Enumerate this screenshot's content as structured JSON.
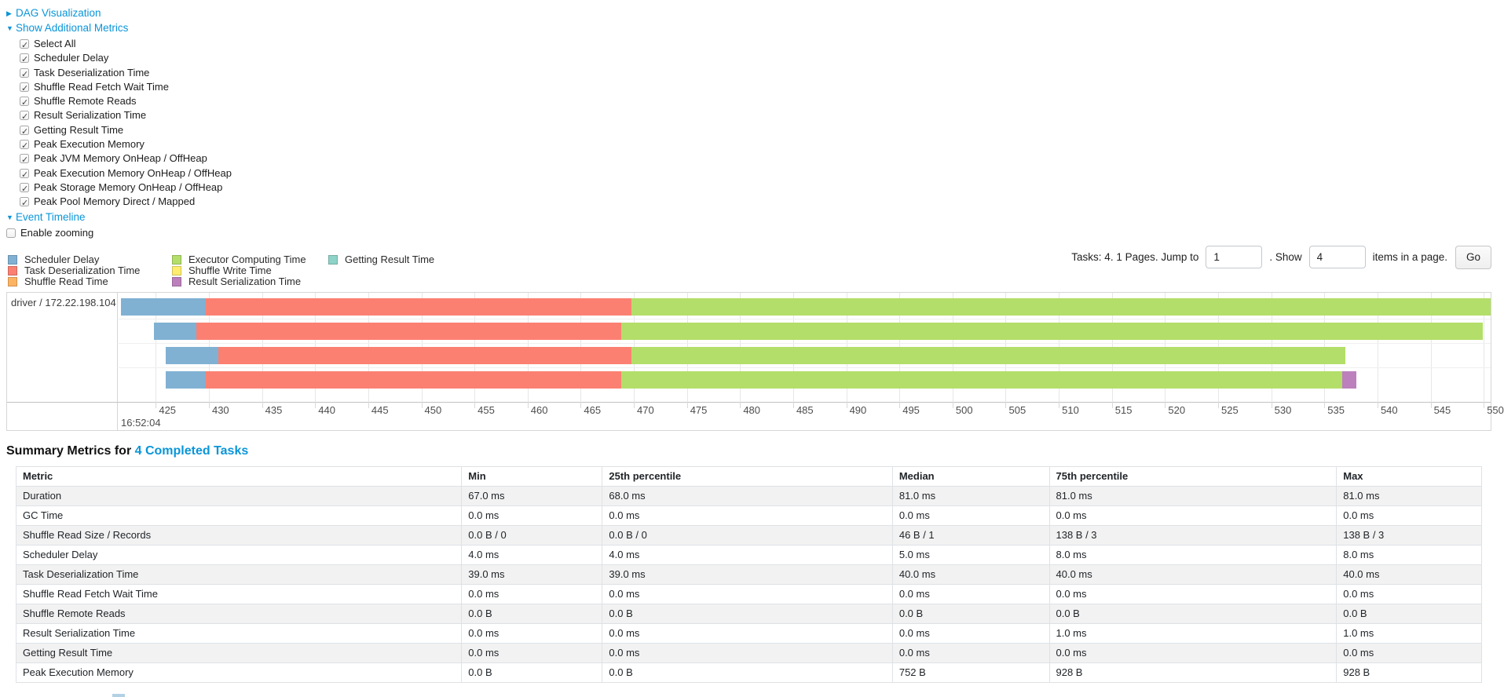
{
  "colors": {
    "link": "#0a95d8",
    "segments": {
      "scheduler-delay": "#80B1D3",
      "task-deserialization": "#FB8072",
      "shuffle-read": "#FDB462",
      "executor-computing": "#B3DE69",
      "shuffle-write": "#FFED6F",
      "result-serialization": "#BC80BD",
      "getting-result": "#8DD3C7"
    }
  },
  "controls": {
    "dag_label": "DAG Visualization",
    "metrics_toggle_label": "Show Additional Metrics",
    "metric_checkboxes": [
      "Select All",
      "Scheduler Delay",
      "Task Deserialization Time",
      "Shuffle Read Fetch Wait Time",
      "Shuffle Remote Reads",
      "Result Serialization Time",
      "Getting Result Time",
      "Peak Execution Memory",
      "Peak JVM Memory OnHeap / OffHeap",
      "Peak Execution Memory OnHeap / OffHeap",
      "Peak Storage Memory OnHeap / OffHeap",
      "Peak Pool Memory Direct / Mapped"
    ],
    "event_timeline_label": "Event Timeline",
    "enable_zooming_label": "Enable zooming"
  },
  "legend": {
    "columns": [
      [
        {
          "type": "scheduler-delay",
          "label": "Scheduler Delay"
        },
        {
          "type": "task-deserialization",
          "label": "Task Deserialization Time"
        },
        {
          "type": "shuffle-read",
          "label": "Shuffle Read Time"
        }
      ],
      [
        {
          "type": "executor-computing",
          "label": "Executor Computing Time"
        },
        {
          "type": "shuffle-write",
          "label": "Shuffle Write Time"
        },
        {
          "type": "result-serialization",
          "label": "Result Serialization Time"
        }
      ],
      [
        {
          "type": "getting-result",
          "label": "Getting Result Time"
        }
      ]
    ]
  },
  "pagination": {
    "prefix": "Tasks: 4. 1 Pages. Jump to",
    "jump_value": "1",
    "separator": ". Show",
    "show_value": "4",
    "suffix": "items in a page.",
    "go_label": "Go"
  },
  "timeline": {
    "row_label": "driver / 172.22.198.104",
    "axis": {
      "min_ms": 421.5,
      "max_ms": 550.65,
      "tick_start": 425,
      "tick_end": 550,
      "tick_step": 5,
      "time_label": "16:52:04"
    },
    "tasks": [
      {
        "segments": [
          {
            "type": "scheduler-delay",
            "from": 421.7,
            "to": 429.7
          },
          {
            "type": "task-deserialization",
            "from": 429.7,
            "to": 469.8
          },
          {
            "type": "executor-computing",
            "from": 469.8,
            "to": 550.8
          }
        ]
      },
      {
        "segments": [
          {
            "type": "scheduler-delay",
            "from": 424.8,
            "to": 428.8
          },
          {
            "type": "task-deserialization",
            "from": 428.8,
            "to": 468.8
          },
          {
            "type": "executor-computing",
            "from": 468.8,
            "to": 549.9
          }
        ]
      },
      {
        "segments": [
          {
            "type": "scheduler-delay",
            "from": 425.9,
            "to": 430.9
          },
          {
            "type": "task-deserialization",
            "from": 430.9,
            "to": 469.8
          },
          {
            "type": "executor-computing",
            "from": 469.8,
            "to": 537.0
          }
        ]
      },
      {
        "segments": [
          {
            "type": "scheduler-delay",
            "from": 425.9,
            "to": 429.7
          },
          {
            "type": "task-deserialization",
            "from": 429.7,
            "to": 468.8
          },
          {
            "type": "executor-computing",
            "from": 468.8,
            "to": 536.7
          },
          {
            "type": "result-serialization",
            "from": 536.7,
            "to": 538.0
          }
        ]
      }
    ]
  },
  "summary": {
    "title_prefix": "Summary Metrics for ",
    "title_link": "4 Completed Tasks",
    "table": {
      "headers": [
        "Metric",
        "Min",
        "25th percentile",
        "Median",
        "75th percentile",
        "Max"
      ],
      "col_widths": [
        "30.4%",
        "9.6%",
        "19.8%",
        "10.7%",
        "19.6%",
        "9.9%"
      ],
      "rows": [
        {
          "metric": "Duration",
          "values": [
            "67.0 ms",
            "68.0 ms",
            "81.0 ms",
            "81.0 ms",
            "81.0 ms"
          ]
        },
        {
          "metric": "GC Time",
          "values": [
            "0.0 ms",
            "0.0 ms",
            "0.0 ms",
            "0.0 ms",
            "0.0 ms"
          ]
        },
        {
          "metric": "Shuffle Read Size / Records",
          "values": [
            "0.0 B / 0",
            "0.0 B / 0",
            "46 B / 1",
            "138 B / 3",
            "138 B / 3"
          ]
        },
        {
          "metric": "Scheduler Delay",
          "values": [
            "4.0 ms",
            "4.0 ms",
            "5.0 ms",
            "8.0 ms",
            "8.0 ms"
          ]
        },
        {
          "metric": "Task Deserialization Time",
          "values": [
            "39.0 ms",
            "39.0 ms",
            "40.0 ms",
            "40.0 ms",
            "40.0 ms"
          ]
        },
        {
          "metric": "Shuffle Read Fetch Wait Time",
          "values": [
            "0.0 ms",
            "0.0 ms",
            "0.0 ms",
            "0.0 ms",
            "0.0 ms"
          ]
        },
        {
          "metric": "Shuffle Remote Reads",
          "values": [
            "0.0 B",
            "0.0 B",
            "0.0 B",
            "0.0 B",
            "0.0 B"
          ]
        },
        {
          "metric": "Result Serialization Time",
          "values": [
            "0.0 ms",
            "0.0 ms",
            "0.0 ms",
            "1.0 ms",
            "1.0 ms"
          ]
        },
        {
          "metric": "Getting Result Time",
          "values": [
            "0.0 ms",
            "0.0 ms",
            "0.0 ms",
            "0.0 ms",
            "0.0 ms"
          ]
        },
        {
          "metric": "Peak Execution Memory",
          "values": [
            "0.0 B",
            "0.0 B",
            "752 B",
            "928 B",
            "928 B"
          ]
        }
      ]
    }
  }
}
